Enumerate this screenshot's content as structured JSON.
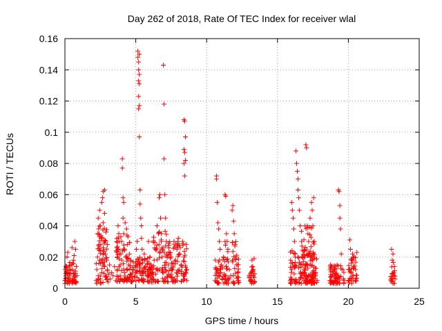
{
  "chart_data": {
    "type": "scatter",
    "title": "Day 262 of 2018, Rate Of TEC Index for receiver wlal",
    "xlabel": "GPS time / hours",
    "ylabel": "ROTI / TECUs",
    "xlim": [
      0,
      25
    ],
    "ylim": [
      0,
      0.16
    ],
    "xticks": [
      0,
      5,
      10,
      15,
      20,
      25
    ],
    "xtick_labels": [
      "0",
      "5",
      "10",
      "15",
      "20",
      "25"
    ],
    "yticks": [
      0,
      0.02,
      0.04,
      0.06,
      0.08,
      0.1,
      0.12,
      0.14,
      0.16
    ],
    "ytick_labels": [
      "0",
      "0.02",
      "0.04",
      "0.06",
      "0.08",
      "0.1",
      "0.12",
      "0.14",
      "0.16"
    ],
    "grid": true,
    "marker": "+",
    "series": [
      {
        "name": "ROTI",
        "color": "#ff0000",
        "points": [
          [
            0.0,
            0.005
          ],
          [
            0.0,
            0.003
          ],
          [
            0.05,
            0.008
          ],
          [
            0.1,
            0.013
          ],
          [
            0.1,
            0.004
          ],
          [
            0.15,
            0.02
          ],
          [
            0.2,
            0.01
          ],
          [
            0.2,
            0.023
          ],
          [
            0.25,
            0.006
          ],
          [
            0.3,
            0.003
          ],
          [
            0.3,
            0.008
          ],
          [
            0.5,
            0.012
          ],
          [
            0.5,
            0.026
          ],
          [
            0.55,
            0.016
          ],
          [
            0.55,
            0.005
          ],
          [
            0.6,
            0.018
          ],
          [
            0.6,
            0.009
          ],
          [
            0.65,
            0.021
          ],
          [
            0.7,
            0.03
          ],
          [
            0.7,
            0.007
          ],
          [
            0.75,
            0.011
          ],
          [
            0.75,
            0.025
          ],
          [
            0.8,
            0.004
          ],
          [
            0.8,
            0.014
          ],
          [
            0.85,
            0.008
          ],
          [
            2.2,
            0.005
          ],
          [
            2.25,
            0.012
          ],
          [
            2.3,
            0.02
          ],
          [
            2.3,
            0.035
          ],
          [
            2.35,
            0.045
          ],
          [
            2.35,
            0.008
          ],
          [
            2.4,
            0.028
          ],
          [
            2.4,
            0.016
          ],
          [
            2.45,
            0.05
          ],
          [
            2.5,
            0.04
          ],
          [
            2.5,
            0.024
          ],
          [
            2.5,
            0.006
          ],
          [
            2.55,
            0.032
          ],
          [
            2.6,
            0.055
          ],
          [
            2.6,
            0.018
          ],
          [
            2.6,
            0.01
          ],
          [
            2.65,
            0.058
          ],
          [
            2.7,
            0.062
          ],
          [
            2.7,
            0.042
          ],
          [
            2.7,
            0.026
          ],
          [
            2.75,
            0.03
          ],
          [
            2.8,
            0.014
          ],
          [
            2.8,
            0.048
          ],
          [
            2.8,
            0.063
          ],
          [
            2.85,
            0.022
          ],
          [
            2.9,
            0.036
          ],
          [
            2.9,
            0.007
          ],
          [
            2.95,
            0.018
          ],
          [
            3.0,
            0.012
          ],
          [
            3.0,
            0.028
          ],
          [
            3.05,
            0.004
          ],
          [
            3.1,
            0.009
          ],
          [
            3.15,
            0.015
          ],
          [
            3.2,
            0.006
          ],
          [
            3.3,
            0.01
          ],
          [
            3.4,
            0.008
          ],
          [
            3.5,
            0.014
          ],
          [
            3.6,
            0.005
          ],
          [
            3.7,
            0.02
          ],
          [
            3.7,
            0.012
          ],
          [
            3.75,
            0.04
          ],
          [
            3.8,
            0.035
          ],
          [
            3.8,
            0.025
          ],
          [
            3.85,
            0.03
          ],
          [
            3.9,
            0.015
          ],
          [
            3.9,
            0.008
          ],
          [
            3.95,
            0.022
          ],
          [
            4.0,
            0.018
          ],
          [
            4.0,
            0.03
          ],
          [
            4.05,
            0.083
          ],
          [
            4.05,
            0.077
          ],
          [
            4.1,
            0.058
          ],
          [
            4.1,
            0.045
          ],
          [
            4.15,
            0.055
          ],
          [
            4.15,
            0.035
          ],
          [
            4.2,
            0.025
          ],
          [
            4.2,
            0.01
          ],
          [
            4.25,
            0.042
          ],
          [
            4.3,
            0.02
          ],
          [
            4.35,
            0.038
          ],
          [
            4.4,
            0.012
          ],
          [
            4.4,
            0.028
          ],
          [
            4.45,
            0.033
          ],
          [
            4.5,
            0.015
          ],
          [
            4.5,
            0.006
          ],
          [
            4.55,
            0.022
          ],
          [
            4.6,
            0.009
          ],
          [
            4.65,
            0.018
          ],
          [
            4.7,
            0.004
          ],
          [
            4.8,
            0.012
          ],
          [
            4.9,
            0.007
          ],
          [
            5.0,
            0.016
          ],
          [
            5.05,
            0.025
          ],
          [
            5.1,
            0.03
          ],
          [
            5.15,
            0.152
          ],
          [
            5.15,
            0.148
          ],
          [
            5.2,
            0.14
          ],
          [
            5.2,
            0.133
          ],
          [
            5.2,
            0.145
          ],
          [
            5.25,
            0.15
          ],
          [
            5.25,
            0.137
          ],
          [
            5.25,
            0.131
          ],
          [
            5.2,
            0.123
          ],
          [
            5.25,
            0.117
          ],
          [
            5.2,
            0.115
          ],
          [
            5.25,
            0.097
          ],
          [
            5.3,
            0.063
          ],
          [
            5.3,
            0.054
          ],
          [
            5.35,
            0.045
          ],
          [
            5.4,
            0.04
          ],
          [
            5.4,
            0.032
          ],
          [
            5.45,
            0.025
          ],
          [
            5.5,
            0.018
          ],
          [
            5.5,
            0.01
          ],
          [
            5.55,
            0.006
          ],
          [
            5.6,
            0.022
          ],
          [
            5.7,
            0.014
          ],
          [
            5.8,
            0.008
          ],
          [
            5.9,
            0.03
          ],
          [
            6.0,
            0.02
          ],
          [
            6.1,
            0.012
          ],
          [
            6.2,
            0.006
          ],
          [
            6.3,
            0.018
          ],
          [
            6.4,
            0.025
          ],
          [
            6.5,
            0.04
          ],
          [
            6.6,
            0.035
          ],
          [
            6.65,
            0.058
          ],
          [
            6.7,
            0.06
          ],
          [
            6.75,
            0.045
          ],
          [
            6.8,
            0.03
          ],
          [
            6.85,
            0.02
          ],
          [
            6.9,
            0.012
          ],
          [
            6.95,
            0.143
          ],
          [
            7.0,
            0.118
          ],
          [
            7.0,
            0.083
          ],
          [
            7.05,
            0.06
          ],
          [
            7.1,
            0.045
          ],
          [
            7.15,
            0.03
          ],
          [
            7.2,
            0.022
          ],
          [
            7.3,
            0.015
          ],
          [
            7.4,
            0.008
          ],
          [
            7.5,
            0.02
          ],
          [
            7.6,
            0.012
          ],
          [
            7.7,
            0.03
          ],
          [
            7.8,
            0.018
          ],
          [
            7.9,
            0.025
          ],
          [
            8.0,
            0.032
          ],
          [
            8.1,
            0.022
          ],
          [
            8.2,
            0.015
          ],
          [
            8.3,
            0.03
          ],
          [
            8.4,
            0.02
          ],
          [
            8.4,
            0.108
          ],
          [
            8.45,
            0.107
          ],
          [
            8.5,
            0.097
          ],
          [
            8.4,
            0.089
          ],
          [
            8.45,
            0.087
          ],
          [
            8.5,
            0.082
          ],
          [
            8.4,
            0.08
          ],
          [
            8.45,
            0.072
          ],
          [
            8.5,
            0.01
          ],
          [
            8.6,
            0.005
          ],
          [
            8.6,
            0.012
          ],
          [
            10.6,
            0.005
          ],
          [
            10.65,
            0.012
          ],
          [
            10.7,
            0.07
          ],
          [
            10.7,
            0.072
          ],
          [
            10.75,
            0.055
          ],
          [
            10.8,
            0.042
          ],
          [
            10.85,
            0.038
          ],
          [
            10.9,
            0.03
          ],
          [
            10.9,
            0.018
          ],
          [
            10.95,
            0.025
          ],
          [
            11.0,
            0.01
          ],
          [
            11.05,
            0.015
          ],
          [
            11.1,
            0.006
          ],
          [
            11.2,
            0.02
          ],
          [
            11.3,
            0.06
          ],
          [
            11.35,
            0.059
          ],
          [
            11.4,
            0.035
          ],
          [
            11.45,
            0.03
          ],
          [
            11.5,
            0.025
          ],
          [
            11.6,
            0.012
          ],
          [
            11.7,
            0.008
          ],
          [
            11.8,
            0.05
          ],
          [
            11.85,
            0.053
          ],
          [
            11.9,
            0.043
          ],
          [
            11.95,
            0.035
          ],
          [
            12.0,
            0.028
          ],
          [
            12.05,
            0.02
          ],
          [
            12.1,
            0.015
          ],
          [
            12.2,
            0.01
          ],
          [
            12.25,
            0.005
          ],
          [
            13.1,
            0.005
          ],
          [
            13.15,
            0.01
          ],
          [
            13.2,
            0.018
          ],
          [
            13.25,
            0.014
          ],
          [
            13.3,
            0.008
          ],
          [
            13.35,
            0.019
          ],
          [
            13.4,
            0.004
          ],
          [
            15.9,
            0.005
          ],
          [
            16.0,
            0.012
          ],
          [
            16.0,
            0.055
          ],
          [
            16.05,
            0.05
          ],
          [
            16.1,
            0.045
          ],
          [
            16.15,
            0.038
          ],
          [
            16.2,
            0.03
          ],
          [
            16.25,
            0.02
          ],
          [
            16.3,
            0.088
          ],
          [
            16.35,
            0.08
          ],
          [
            16.4,
            0.075
          ],
          [
            16.45,
            0.07
          ],
          [
            16.45,
            0.063
          ],
          [
            16.5,
            0.058
          ],
          [
            16.55,
            0.05
          ],
          [
            16.6,
            0.04
          ],
          [
            16.7,
            0.03
          ],
          [
            16.8,
            0.02
          ],
          [
            16.9,
            0.012
          ],
          [
            17.0,
            0.092
          ],
          [
            17.05,
            0.09
          ],
          [
            17.1,
            0.04
          ],
          [
            17.15,
            0.035
          ],
          [
            17.2,
            0.03
          ],
          [
            17.3,
            0.045
          ],
          [
            17.4,
            0.055
          ],
          [
            17.45,
            0.05
          ],
          [
            17.5,
            0.04
          ],
          [
            17.55,
            0.058
          ],
          [
            17.6,
            0.02
          ],
          [
            17.7,
            0.01
          ],
          [
            17.8,
            0.005
          ],
          [
            17.6,
            0.03
          ],
          [
            17.3,
            0.015
          ],
          [
            18.7,
            0.005
          ],
          [
            18.75,
            0.013
          ],
          [
            18.8,
            0.004
          ],
          [
            18.9,
            0.009
          ],
          [
            19.0,
            0.012
          ],
          [
            19.1,
            0.007
          ],
          [
            19.2,
            0.015
          ],
          [
            19.3,
            0.063
          ],
          [
            19.35,
            0.062
          ],
          [
            19.4,
            0.053
          ],
          [
            19.4,
            0.045
          ],
          [
            19.45,
            0.038
          ],
          [
            19.5,
            0.022
          ],
          [
            19.6,
            0.012
          ],
          [
            19.7,
            0.005
          ],
          [
            20.0,
            0.005
          ],
          [
            20.05,
            0.012
          ],
          [
            20.1,
            0.031
          ],
          [
            20.15,
            0.025
          ],
          [
            20.2,
            0.018
          ],
          [
            20.3,
            0.022
          ],
          [
            20.4,
            0.02
          ],
          [
            20.5,
            0.012
          ],
          [
            20.55,
            0.006
          ],
          [
            20.6,
            0.023
          ],
          [
            23.0,
            0.005
          ],
          [
            23.05,
            0.025
          ],
          [
            23.1,
            0.018
          ],
          [
            23.15,
            0.022
          ],
          [
            23.2,
            0.01
          ],
          [
            23.25,
            0.014
          ],
          [
            23.3,
            0.006
          ]
        ],
        "dense_bands": [
          {
            "x": [
              0.0,
              0.8
            ],
            "y": [
              0.003,
              0.017
            ]
          },
          {
            "x": [
              2.2,
              3.1
            ],
            "y": [
              0.003,
              0.04
            ]
          },
          {
            "x": [
              3.6,
              4.6
            ],
            "y": [
              0.004,
              0.035
            ]
          },
          {
            "x": [
              4.6,
              6.2
            ],
            "y": [
              0.004,
              0.02
            ]
          },
          {
            "x": [
              6.2,
              7.2
            ],
            "y": [
              0.004,
              0.04
            ]
          },
          {
            "x": [
              7.2,
              8.6
            ],
            "y": [
              0.004,
              0.03
            ]
          },
          {
            "x": [
              10.6,
              11.0
            ],
            "y": [
              0.003,
              0.018
            ]
          },
          {
            "x": [
              11.1,
              11.6
            ],
            "y": [
              0.003,
              0.03
            ]
          },
          {
            "x": [
              11.8,
              12.3
            ],
            "y": [
              0.003,
              0.03
            ]
          },
          {
            "x": [
              13.0,
              13.4
            ],
            "y": [
              0.003,
              0.015
            ]
          },
          {
            "x": [
              15.9,
              17.8
            ],
            "y": [
              0.003,
              0.025
            ]
          },
          {
            "x": [
              16.6,
              17.6
            ],
            "y": [
              0.003,
              0.04
            ]
          },
          {
            "x": [
              18.7,
              19.7
            ],
            "y": [
              0.003,
              0.015
            ]
          },
          {
            "x": [
              20.0,
              20.6
            ],
            "y": [
              0.003,
              0.02
            ]
          },
          {
            "x": [
              23.0,
              23.3
            ],
            "y": [
              0.003,
              0.02
            ]
          }
        ]
      }
    ]
  }
}
